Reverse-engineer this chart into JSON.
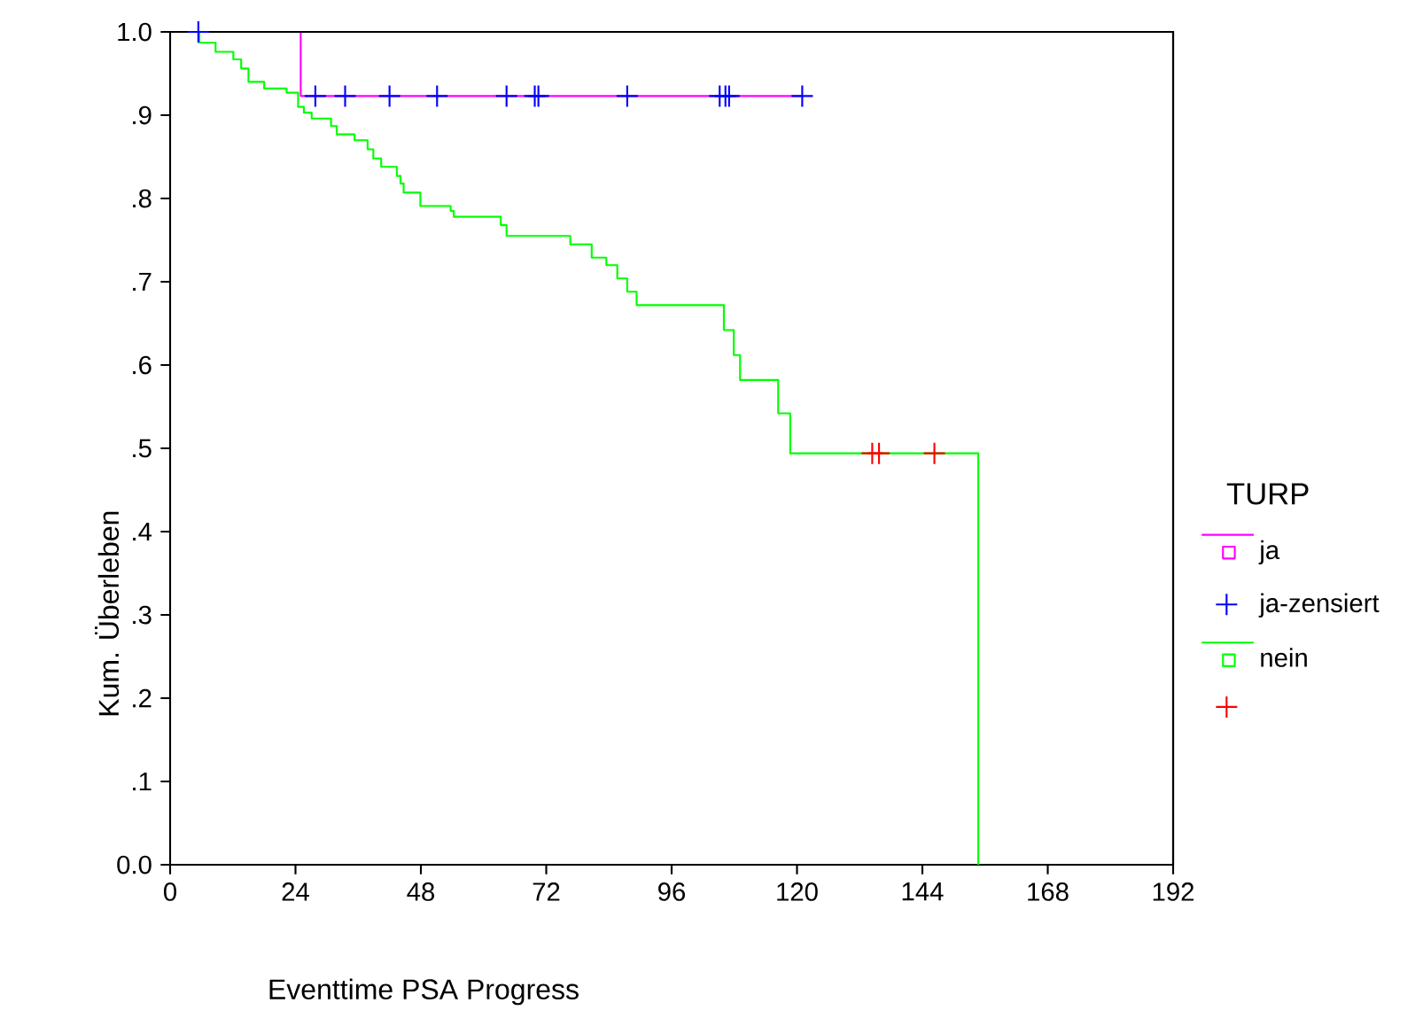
{
  "chart_data": {
    "type": "step",
    "xlabel": "Eventtime PSA Progress",
    "ylabel": "Kum. Überleben",
    "legend_title": "TURP",
    "xlim": [
      0,
      192
    ],
    "ylim": [
      0,
      1
    ],
    "xticks": [
      0,
      24,
      48,
      72,
      96,
      120,
      144,
      168,
      192
    ],
    "yticks": [
      {
        "value": 0,
        "label": "0.0"
      },
      {
        "value": 0.1,
        "label": ".1"
      },
      {
        "value": 0.2,
        "label": ".2"
      },
      {
        "value": 0.3,
        "label": ".3"
      },
      {
        "value": 0.4,
        "label": ".4"
      },
      {
        "value": 0.5,
        "label": ".5"
      },
      {
        "value": 0.6,
        "label": ".6"
      },
      {
        "value": 0.7,
        "label": ".7"
      },
      {
        "value": 0.8,
        "label": ".8"
      },
      {
        "value": 0.9,
        "label": ".9"
      },
      {
        "value": 1,
        "label": "1.0"
      }
    ],
    "grid": false,
    "legend": "right",
    "series": [
      {
        "name": "ja",
        "color": "#ff00ff",
        "x": [
          0,
          25,
          121
        ],
        "values": [
          1,
          0.923,
          0.923
        ]
      },
      {
        "name": "ja-zensiert",
        "type": "scatter",
        "marker": "cross",
        "color": "#0000ff",
        "x": [
          5.4,
          27.8,
          33.5,
          42,
          51.1,
          64.4,
          69.8,
          70.5,
          87.5,
          105.2,
          106.3,
          107,
          121
        ],
        "values": [
          1,
          0.923,
          0.923,
          0.923,
          0.923,
          0.923,
          0.923,
          0.923,
          0.923,
          0.923,
          0.923,
          0.923,
          0.923
        ]
      },
      {
        "name": "nein",
        "color": "#00ff00",
        "x": [
          0,
          5.6,
          8.7,
          12.1,
          13.6,
          15,
          18,
          22.3,
          24.5,
          25.6,
          27.1,
          30.8,
          31.9,
          35.3,
          37.8,
          38.9,
          40.4,
          43.4,
          44.1,
          44.7,
          47.9,
          53.7,
          54.3,
          63.3,
          64.4,
          76.6,
          80.7,
          83.5,
          85.6,
          87.5,
          89.3,
          106,
          107.9,
          109.1,
          116.4,
          118.7,
          154.7
        ],
        "values": [
          1,
          0.987,
          0.976,
          0.967,
          0.956,
          0.94,
          0.932,
          0.927,
          0.91,
          0.903,
          0.896,
          0.887,
          0.877,
          0.87,
          0.859,
          0.848,
          0.838,
          0.827,
          0.818,
          0.807,
          0.791,
          0.785,
          0.778,
          0.768,
          0.755,
          0.745,
          0.729,
          0.72,
          0.704,
          0.688,
          0.672,
          0.642,
          0.612,
          0.582,
          0.542,
          0.494,
          0
        ]
      },
      {
        "type": "scatter",
        "marker": "cross",
        "color": "#ff0000",
        "x": [
          134.4,
          135.7,
          146.3
        ],
        "values": [
          0.494,
          0.494,
          0.494
        ]
      }
    ]
  }
}
